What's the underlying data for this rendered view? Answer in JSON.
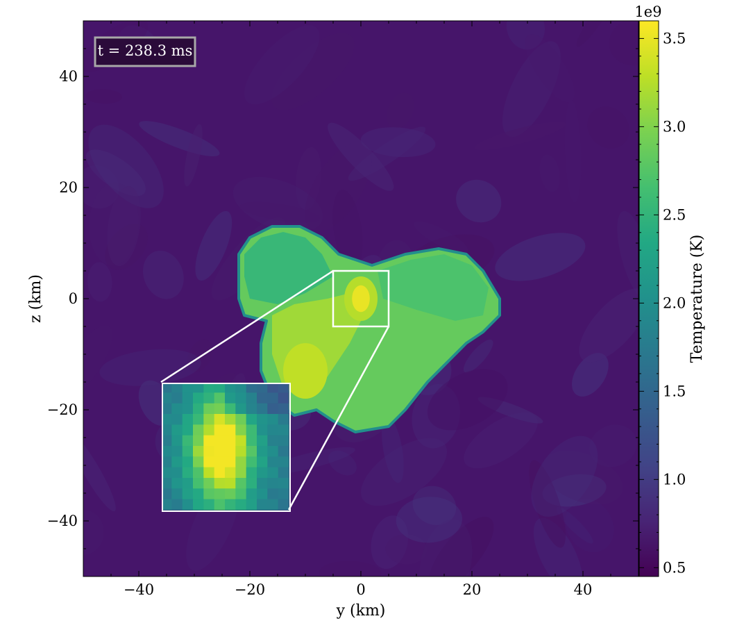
{
  "chart_data": {
    "type": "heatmap",
    "x": {
      "label": "y  (km)",
      "range": [
        -50,
        50
      ],
      "ticks": [
        -40,
        -20,
        0,
        20,
        40
      ],
      "tick_labels": [
        "−40",
        "−20",
        "0",
        "20",
        "40"
      ]
    },
    "y": {
      "label": "z  (km)",
      "range": [
        -50,
        50
      ],
      "ticks": [
        -40,
        -20,
        0,
        20,
        40
      ],
      "tick_labels": [
        "−40",
        "−20",
        "0",
        "20",
        "40"
      ]
    },
    "colorbar": {
      "label": "Temperature  (K)",
      "colormap": "viridis",
      "range": [
        0.45,
        3.6
      ],
      "offset_text": "1e9",
      "ticks": [
        0.5,
        1.0,
        1.5,
        2.0,
        2.5,
        3.0,
        3.5
      ],
      "tick_labels": [
        "0.5",
        "1.0",
        "1.5",
        "2.0",
        "2.5",
        "3.0",
        "3.5"
      ]
    },
    "annotation": "t = 238.3 ms",
    "inset": {
      "zoom_region_x": [
        -5,
        5
      ],
      "zoom_region_y": [
        -5,
        5
      ],
      "placed_x": [
        -36,
        -13
      ],
      "placed_y": [
        -38,
        -15
      ]
    },
    "field": {
      "background_temperature": 0.75,
      "hot_region_temperature_range": [
        2.6,
        3.5
      ],
      "hot_spot_center": [
        0,
        0
      ],
      "hot_spot_temperature": 3.5
    }
  },
  "colors": {
    "viridis_low": "#440154",
    "viridis_high": "#fde725",
    "inset_border": "#ffffff",
    "label_box_fill": "#2b0b3a",
    "label_box_border": "#a8a8a8"
  }
}
